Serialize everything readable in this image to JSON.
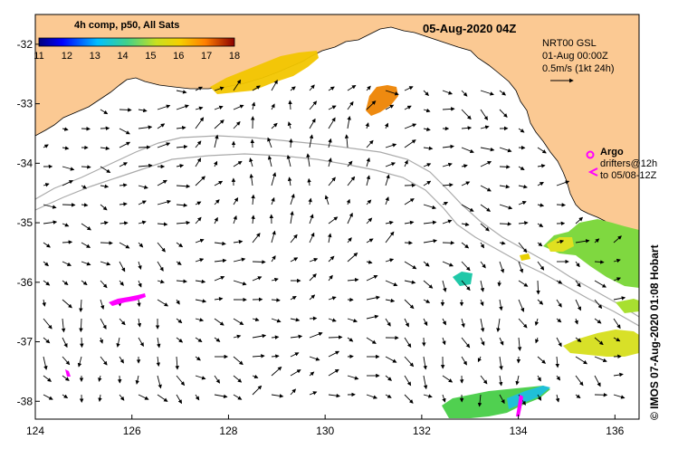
{
  "map": {
    "title": "05-Aug-2020 04Z",
    "legend_title": "4h comp, p50, All Sats",
    "colorbar_ticks": [
      "11",
      "12",
      "13",
      "14",
      "15",
      "16",
      "17",
      "18"
    ],
    "x_ticks": [
      "124",
      "126",
      "128",
      "130",
      "132",
      "134",
      "136"
    ],
    "y_ticks": [
      "-32",
      "-33",
      "-34",
      "-35",
      "-36",
      "-37",
      "-38"
    ],
    "lon_range": [
      124,
      136.5
    ],
    "lat_range": [
      -38.3,
      -31.5
    ],
    "info": {
      "line1": "NRT00 GSL",
      "line2": "01-Aug 00:00Z",
      "line3": "0.5m/s (1kt 24h)"
    },
    "argo_label": "Argo",
    "drifter_line1": "drifters@12h",
    "drifter_line2": "to 05/08-12Z",
    "credit": "©  IMOS 07-Aug-2020 01:08 Hobart",
    "colors": {
      "land": "#fbc993",
      "sea": "#ffffff",
      "bathymetry": "#aaaaaa",
      "argo": "#ff00ff"
    }
  }
}
